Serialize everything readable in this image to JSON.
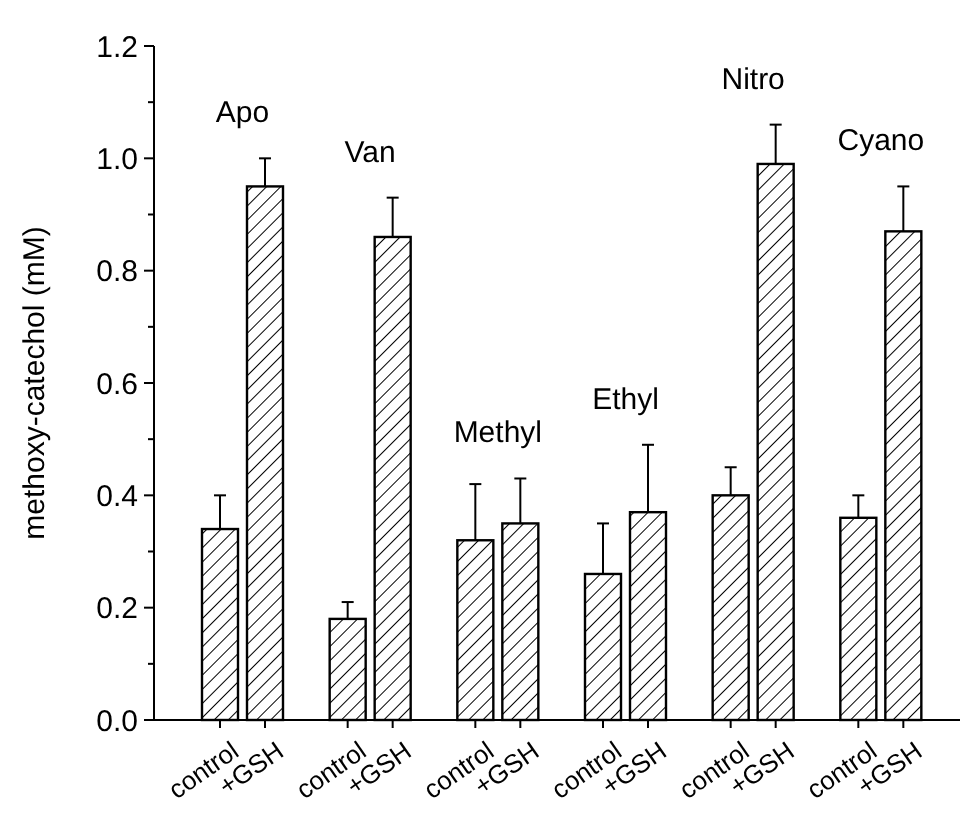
{
  "chart_data": {
    "type": "bar",
    "ylabel": "methoxy-catechol (mM)",
    "categories": [
      "control",
      "+GSH",
      "control",
      "+GSH",
      "control",
      "+GSH",
      "control",
      "+GSH",
      "control",
      "+GSH",
      "control",
      "+GSH"
    ],
    "values": [
      0.34,
      0.95,
      0.18,
      0.86,
      0.32,
      0.35,
      0.26,
      0.37,
      0.4,
      0.99,
      0.36,
      0.87
    ],
    "errors": [
      [
        0.34,
        0.4
      ],
      [
        0.95,
        1.0
      ],
      [
        0.18,
        0.21
      ],
      [
        0.86,
        0.93
      ],
      [
        0.32,
        0.42
      ],
      [
        0.35,
        0.43
      ],
      [
        0.26,
        0.35
      ],
      [
        0.37,
        0.49
      ],
      [
        0.4,
        0.45
      ],
      [
        0.99,
        1.06
      ],
      [
        0.36,
        0.4
      ],
      [
        0.87,
        0.95
      ]
    ],
    "color": "#000000",
    "annotations": [
      "Apo",
      "Van",
      "Methyl",
      "Ethyl",
      "Nitro",
      "Cyano"
    ],
    "ylim": [
      0,
      1.2
    ],
    "yticks": [
      {
        "value": 0,
        "label": "0.0"
      },
      0.2,
      0.4,
      0.6,
      0.8,
      {
        "value": 1,
        "label": "1.0"
      },
      1.2
    ],
    "grid": false
  }
}
